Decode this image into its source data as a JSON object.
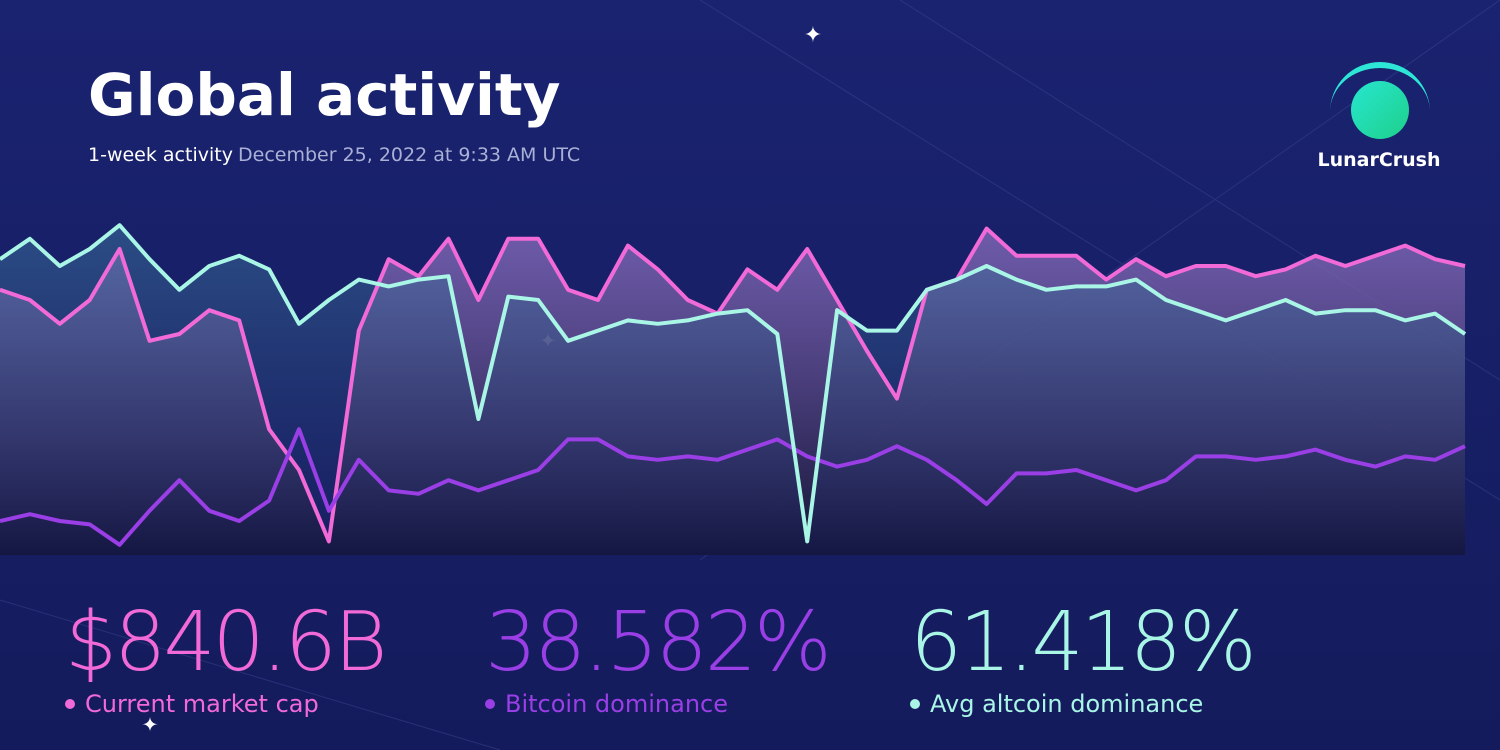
{
  "header": {
    "title": "Global activity",
    "subtitle": "1-week activity",
    "date": "December 25, 2022 at 9:33 AM UTC",
    "brand": "LunarCrush"
  },
  "chart_data": {
    "type": "line",
    "ylim": [
      0,
      100
    ],
    "series": [
      {
        "name": "Current market cap",
        "color": "#f26ad8",
        "values": [
          78,
          75,
          68,
          75,
          90,
          63,
          65,
          72,
          69,
          37,
          25,
          4,
          66,
          87,
          82,
          93,
          75,
          93,
          93,
          78,
          75,
          91,
          84,
          75,
          71,
          84,
          78,
          90,
          75,
          60,
          46,
          78,
          81,
          96,
          88,
          88,
          88,
          81,
          87,
          82,
          85,
          85,
          82,
          84,
          88,
          85,
          88,
          91,
          87,
          85
        ]
      },
      {
        "name": "Bitcoin dominance",
        "color": "#9a3ee6",
        "values": [
          10,
          12,
          10,
          9,
          3,
          13,
          22,
          13,
          10,
          16,
          37,
          13,
          28,
          19,
          18,
          22,
          19,
          22,
          25,
          34,
          34,
          29,
          28,
          29,
          28,
          31,
          34,
          29,
          26,
          28,
          32,
          28,
          22,
          15,
          24,
          24,
          25,
          22,
          19,
          22,
          29,
          29,
          28,
          29,
          31,
          28,
          26,
          29,
          28,
          32
        ]
      },
      {
        "name": "Avg altcoin dominance",
        "color": "#a9f6e6",
        "values": [
          87,
          93,
          85,
          90,
          97,
          87,
          78,
          85,
          88,
          84,
          68,
          75,
          81,
          79,
          81,
          82,
          40,
          76,
          75,
          63,
          66,
          69,
          68,
          69,
          71,
          72,
          65,
          4,
          72,
          66,
          66,
          78,
          81,
          85,
          81,
          78,
          79,
          79,
          81,
          75,
          72,
          69,
          72,
          75,
          71,
          72,
          72,
          69,
          71,
          65
        ]
      }
    ]
  },
  "stats": [
    "$840.6B",
    "38.582%",
    "61.418%"
  ]
}
